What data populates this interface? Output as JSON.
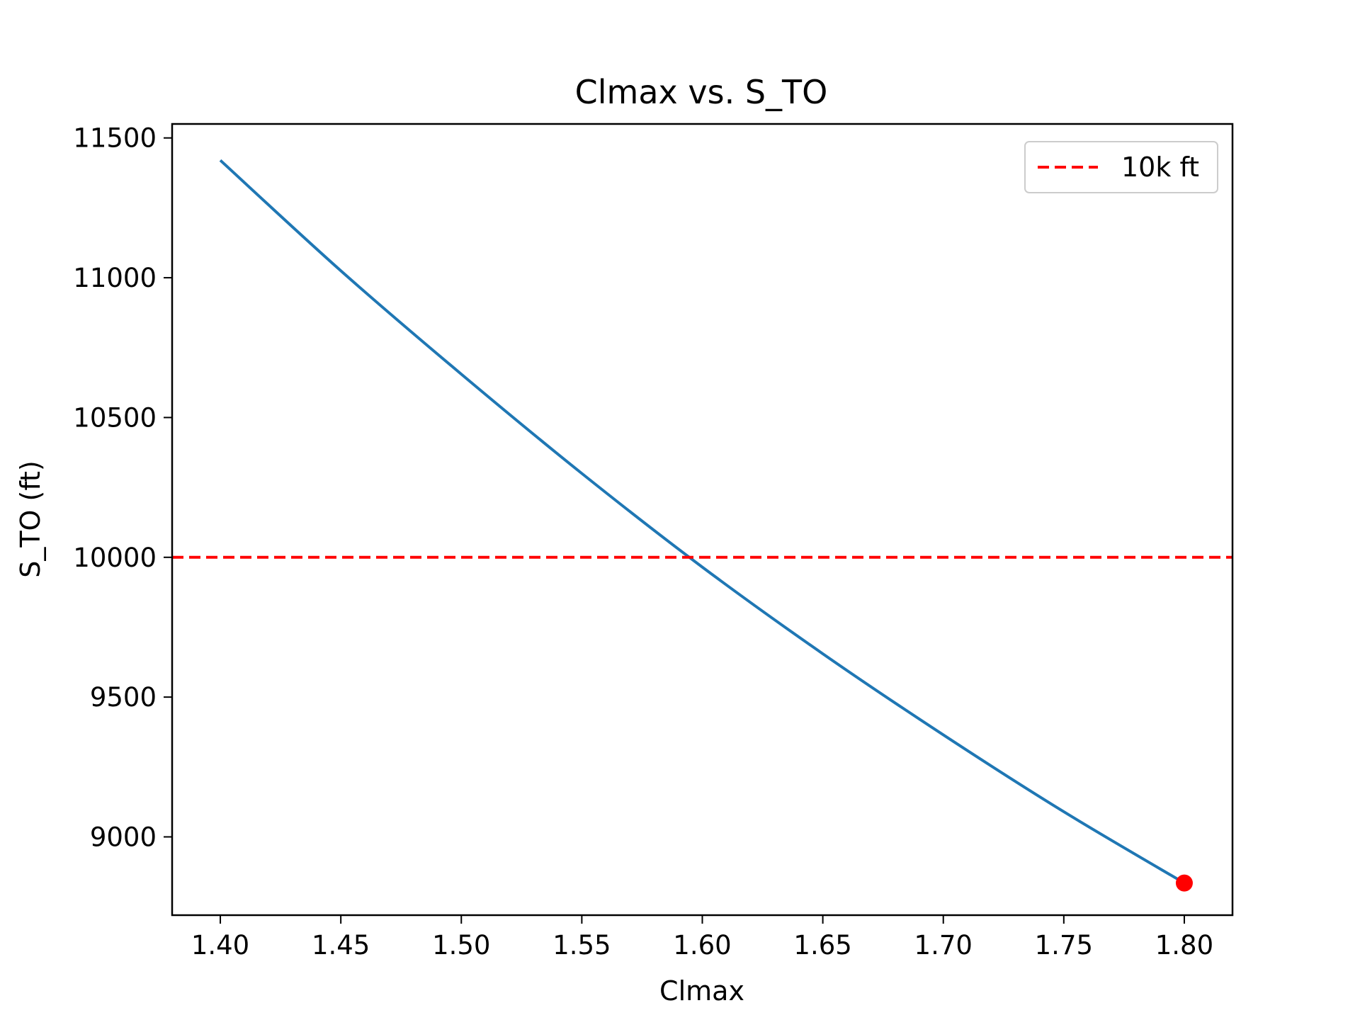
{
  "chart_data": {
    "type": "line",
    "title": "Clmax vs. S_TO",
    "xlabel": "Clmax",
    "ylabel": "S_TO (ft)",
    "xlim": [
      1.38,
      1.82
    ],
    "ylim": [
      8720,
      11550
    ],
    "xticks": [
      1.4,
      1.45,
      1.5,
      1.55,
      1.6,
      1.65,
      1.7,
      1.75,
      1.8
    ],
    "xtick_labels": [
      "1.40",
      "1.45",
      "1.50",
      "1.55",
      "1.60",
      "1.65",
      "1.70",
      "1.75",
      "1.80"
    ],
    "yticks": [
      9000,
      9500,
      10000,
      10500,
      11000,
      11500
    ],
    "ytick_labels": [
      "9000",
      "9500",
      "10000",
      "10500",
      "11000",
      "11500"
    ],
    "grid": false,
    "series": [
      {
        "color": "#1f77b4",
        "x": [
          1.4,
          1.45,
          1.5,
          1.55,
          1.6,
          1.65,
          1.7,
          1.75,
          1.8
        ],
        "y": [
          11420,
          11025,
          10655,
          10300,
          9965,
          9655,
          9365,
          9090,
          8835
        ]
      }
    ],
    "reference_line": {
      "name": "10k ft",
      "y": 10000,
      "color": "#ff0000",
      "style": "dashed"
    },
    "marker": {
      "x": 1.8,
      "y": 8835,
      "color": "#ff0000"
    },
    "legend": {
      "placement": "top-right",
      "entries": [
        "10k ft"
      ]
    }
  }
}
